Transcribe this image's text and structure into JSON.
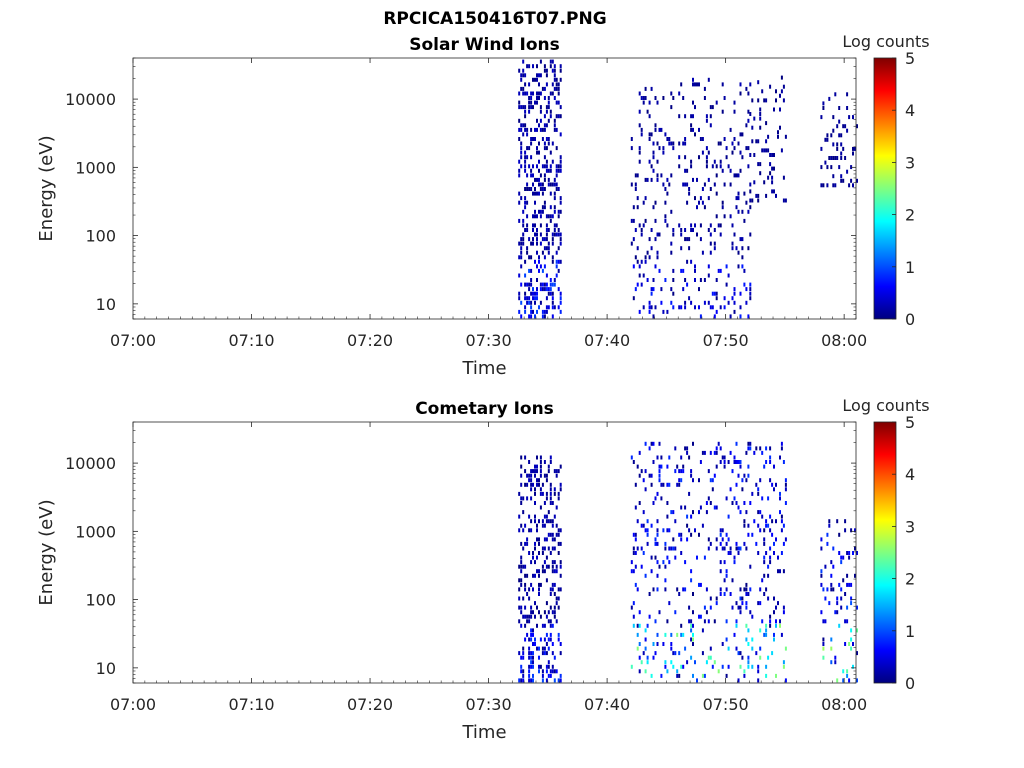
{
  "figure": {
    "title": "RPCICA150416T07.PNG"
  },
  "chart_data": [
    {
      "type": "heatmap",
      "title": "Solar Wind Ions",
      "xlabel": "Time",
      "ylabel": "Energy (eV)",
      "x_ticks": [
        "07:00",
        "07:10",
        "07:20",
        "07:30",
        "07:40",
        "07:50",
        "08:00"
      ],
      "y_ticks": [
        "10",
        "100",
        "1000",
        "10000"
      ],
      "yscale": "log",
      "xlim_minutes": [
        0,
        61
      ],
      "ylim": [
        6,
        40000
      ],
      "colorbar": {
        "label": "Log counts",
        "ticks": [
          "0",
          "1",
          "2",
          "3",
          "4",
          "5"
        ],
        "range": [
          0,
          5
        ],
        "colormap": "jet"
      },
      "active_intervals": [
        {
          "start": "07:32:30",
          "end": "07:36:00",
          "emin": 6,
          "emax": 35000,
          "log_counts_max": 0.5
        },
        {
          "start": "07:42:00",
          "end": "07:45:30",
          "emin": 6,
          "emax": 15000,
          "log_counts_max": 0.4
        },
        {
          "start": "07:46:00",
          "end": "07:52:00",
          "emin": 6,
          "emax": 20000,
          "log_counts_max": 0.4
        },
        {
          "start": "07:52:00",
          "end": "07:55:00",
          "emin": 300,
          "emax": 20000,
          "log_counts_max": 0.3
        },
        {
          "start": "07:58:00",
          "end": "08:01:00",
          "emin": 500,
          "emax": 12000,
          "log_counts_max": 0.3
        }
      ]
    },
    {
      "type": "heatmap",
      "title": "Cometary Ions",
      "xlabel": "Time",
      "ylabel": "Energy (eV)",
      "x_ticks": [
        "07:00",
        "07:10",
        "07:20",
        "07:30",
        "07:40",
        "07:50",
        "08:00"
      ],
      "y_ticks": [
        "10",
        "100",
        "1000",
        "10000"
      ],
      "yscale": "log",
      "xlim_minutes": [
        0,
        61
      ],
      "ylim": [
        6,
        40000
      ],
      "colorbar": {
        "label": "Log counts",
        "ticks": [
          "0",
          "1",
          "2",
          "3",
          "4",
          "5"
        ],
        "range": [
          0,
          5
        ],
        "colormap": "jet"
      },
      "active_intervals": [
        {
          "start": "07:32:30",
          "end": "07:36:00",
          "emin": 6,
          "emax": 12000,
          "log_counts_max": 0.5
        },
        {
          "start": "07:42:00",
          "end": "07:55:00",
          "emin": 6,
          "emax": 18000,
          "log_counts_max": 1.3
        },
        {
          "start": "07:58:00",
          "end": "08:01:00",
          "emin": 6,
          "emax": 1500,
          "log_counts_max": 1.5
        }
      ]
    }
  ]
}
